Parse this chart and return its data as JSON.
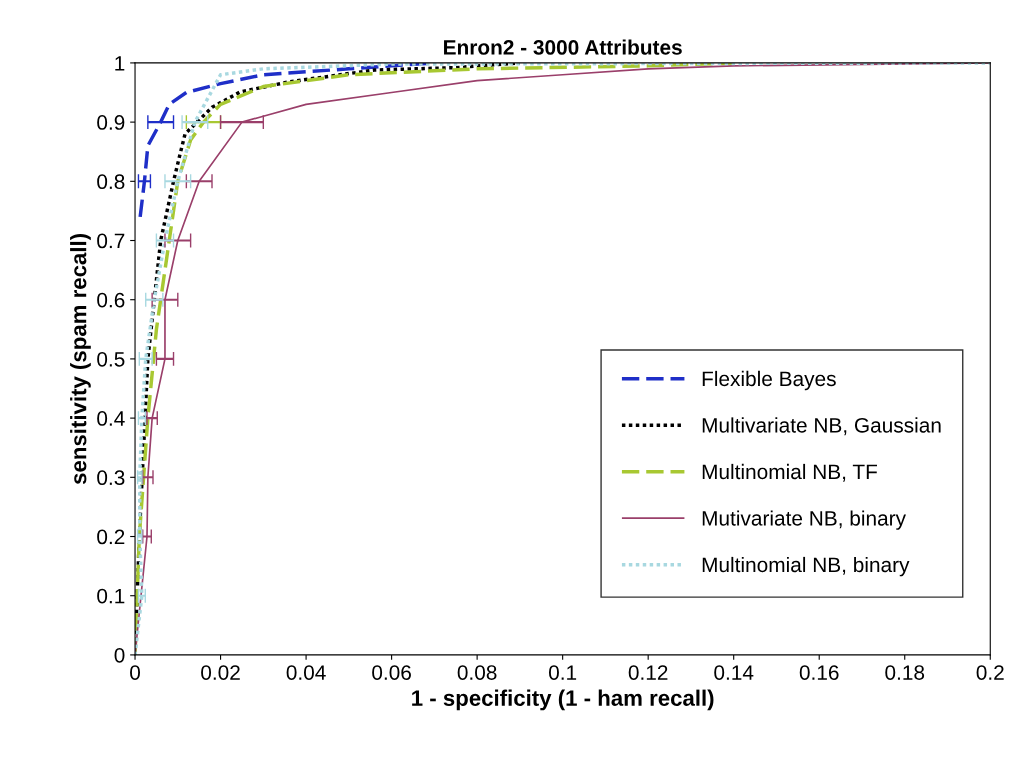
{
  "chart_data": {
    "type": "line",
    "title": "Enron2 - 3000 Attributes",
    "xlabel": "1 - specificity (1 - ham recall)",
    "ylabel": "sensitivity (spam recall)",
    "xlim": [
      0,
      0.2
    ],
    "ylim": [
      0,
      1
    ],
    "xticks": [
      0,
      0.02,
      0.04,
      0.06,
      0.08,
      0.1,
      0.12,
      0.14,
      0.16,
      0.18,
      0.2
    ],
    "yticks": [
      0,
      0.1,
      0.2,
      0.3,
      0.4,
      0.5,
      0.6,
      0.7,
      0.8,
      0.9,
      1
    ],
    "grid": false,
    "legend": "bottom right",
    "marker": "none",
    "series": [
      {
        "name": "Flexible Bayes",
        "color": "#1f2fc8",
        "line_style": "dashed",
        "x": [
          0.0012,
          0.0022,
          0.003,
          0.006,
          0.008,
          0.012,
          0.02,
          0.03,
          0.05,
          0.06,
          0.07
        ],
        "values": [
          0.74,
          0.8,
          0.86,
          0.9,
          0.93,
          0.95,
          0.965,
          0.98,
          0.99,
          0.995,
          1.0
        ],
        "xerrors": [
          null,
          0.0014,
          null,
          0.003,
          null,
          null,
          null,
          null,
          null,
          null,
          null
        ]
      },
      {
        "name": "Multivariate NB, Gaussian",
        "color": "#000000",
        "line_style": "dotted",
        "x": [
          0,
          0.001,
          0.003,
          0.006,
          0.009,
          0.0105,
          0.0117,
          0.018,
          0.0246,
          0.036,
          0.056,
          0.075,
          0.09
        ],
        "values": [
          0,
          0.2,
          0.5,
          0.7,
          0.8,
          0.845,
          0.88,
          0.925,
          0.951,
          0.968,
          0.988,
          0.992,
          1.0
        ],
        "xerrors": [
          null,
          null,
          null,
          null,
          null,
          null,
          null,
          null,
          null,
          null,
          null,
          null,
          null
        ]
      },
      {
        "name": "Multinomial NB, TF",
        "color": "#a8c832",
        "line_style": "dashed",
        "x": [
          0,
          0.001,
          0.003,
          0.005,
          0.008,
          0.01,
          0.013,
          0.016,
          0.02,
          0.03,
          0.05,
          0.08,
          0.12,
          0.14
        ],
        "values": [
          0,
          0.2,
          0.4,
          0.55,
          0.7,
          0.8,
          0.87,
          0.9,
          0.93,
          0.96,
          0.98,
          0.99,
          0.995,
          1.0
        ],
        "xerrors": [
          null,
          null,
          null,
          null,
          null,
          null,
          null,
          0.004,
          null,
          null,
          null,
          null,
          null,
          null
        ]
      },
      {
        "name": "Mutivariate NB, binary",
        "color": "#9a3f6a",
        "line_style": "solid",
        "x": [
          0,
          0.0028,
          0.003,
          0.004,
          0.007,
          0.007,
          0.01,
          0.015,
          0.025,
          0.03,
          0.04,
          0.06,
          0.08,
          0.1,
          0.12,
          0.14,
          0.2
        ],
        "values": [
          0,
          0.2,
          0.3,
          0.4,
          0.5,
          0.6,
          0.7,
          0.8,
          0.9,
          0.91,
          0.93,
          0.95,
          0.97,
          0.98,
          0.99,
          0.995,
          1.0
        ],
        "xerrors": [
          null,
          0.001,
          0.0012,
          0.0012,
          0.002,
          0.003,
          0.003,
          0.003,
          0.005,
          null,
          null,
          null,
          null,
          null,
          null,
          null,
          null
        ]
      },
      {
        "name": "Multinomial NB, binary",
        "color": "#a8d8e0",
        "line_style": "dotted",
        "x": [
          0,
          0.0016,
          0.0011,
          0.0011,
          0.0016,
          0.0025,
          0.0045,
          0.007,
          0.01,
          0.014,
          0.02,
          0.03,
          0.06,
          0.2
        ],
        "values": [
          0,
          0.1,
          0.2,
          0.3,
          0.4,
          0.5,
          0.6,
          0.7,
          0.8,
          0.9,
          0.98,
          0.99,
          0.998,
          1.0
        ],
        "xerrors": [
          null,
          0.0008,
          0.0005,
          0.0005,
          0.0008,
          0.0015,
          0.002,
          0.002,
          0.003,
          0.003,
          null,
          null,
          null,
          null
        ]
      }
    ]
  }
}
